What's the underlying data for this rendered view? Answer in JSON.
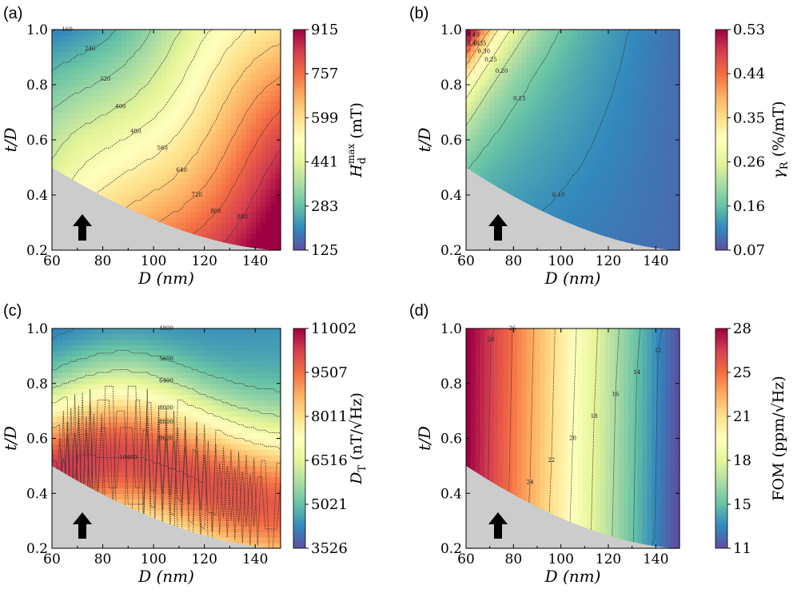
{
  "chart_data": [
    {
      "panel": "(a)",
      "type": "heatmap",
      "xlabel": "D (nm)",
      "ylabel": "t/D",
      "xlim": [
        60,
        150
      ],
      "ylim": [
        0.2,
        1.0
      ],
      "xticks": [
        "60",
        "80",
        "100",
        "120",
        "140"
      ],
      "yticks": [
        "0.2",
        "0.4",
        "0.6",
        "0.8",
        "1.0"
      ],
      "colorbar": {
        "label_main": "H",
        "label_sub": "d",
        "label_sup": "max",
        "label_unit": "(mT)",
        "ticks": [
          "125",
          "283",
          "441",
          "599",
          "757",
          "915"
        ],
        "range": [
          125,
          915
        ]
      },
      "contour_levels": [
        "160",
        "240",
        "320",
        "400",
        "480",
        "560",
        "640",
        "720",
        "800",
        "880"
      ],
      "arrow": "up"
    },
    {
      "panel": "(b)",
      "type": "heatmap",
      "xlabel": "D (nm)",
      "ylabel": "t/D",
      "xlim": [
        60,
        150
      ],
      "ylim": [
        0.2,
        1.0
      ],
      "xticks": [
        "60",
        "80",
        "100",
        "120",
        "140"
      ],
      "yticks": [
        "0.2",
        "0.4",
        "0.6",
        "0.8",
        "1.0"
      ],
      "colorbar": {
        "label_main": "γ",
        "label_sub": "R",
        "label_sup": "",
        "label_unit": "(%/mT)",
        "ticks": [
          "0.07",
          "0.16",
          "0.26",
          "0.35",
          "0.44",
          "0.53"
        ],
        "range": [
          0.07,
          0.53
        ]
      },
      "contour_levels": [
        "0.10",
        "0.15",
        "0.20",
        "0.25",
        "0.30",
        "0.35",
        "0.40",
        "0.45"
      ],
      "arrow": "up"
    },
    {
      "panel": "(c)",
      "type": "heatmap",
      "xlabel": "D (nm)",
      "ylabel": "t/D",
      "xlim": [
        60,
        150
      ],
      "ylim": [
        0.2,
        1.0
      ],
      "xticks": [
        "60",
        "80",
        "100",
        "120",
        "140"
      ],
      "yticks": [
        "0.2",
        "0.4",
        "0.6",
        "0.8",
        "1.0"
      ],
      "colorbar": {
        "label_main": "D",
        "label_sub": "T",
        "label_sup": "",
        "label_unit": "(nT/√Hz)",
        "ticks": [
          "3526",
          "5021",
          "6516",
          "8011",
          "9507",
          "11002"
        ],
        "range": [
          3526,
          11002
        ]
      },
      "contour_levels": [
        "4800",
        "5600",
        "6400",
        "7200",
        "8000",
        "8800",
        "9600",
        "10400"
      ],
      "arrow": "up"
    },
    {
      "panel": "(d)",
      "type": "heatmap",
      "xlabel": "D (nm)",
      "ylabel": "t/D",
      "xlim": [
        60,
        150
      ],
      "ylim": [
        0.2,
        1.0
      ],
      "xticks": [
        "60",
        "80",
        "100",
        "120",
        "140"
      ],
      "yticks": [
        "0.2",
        "0.4",
        "0.6",
        "0.8",
        "1.0"
      ],
      "colorbar": {
        "label_main": "FOM",
        "label_sub": "",
        "label_sup": "",
        "label_unit": "(ppm/√Hz)",
        "ticks": [
          "11",
          "15",
          "18",
          "21",
          "25",
          "28"
        ],
        "range": [
          11,
          28
        ]
      },
      "contour_levels": [
        "12",
        "14",
        "16",
        "18",
        "20",
        "22",
        "24",
        "26",
        "28"
      ],
      "arrow": "up"
    }
  ]
}
